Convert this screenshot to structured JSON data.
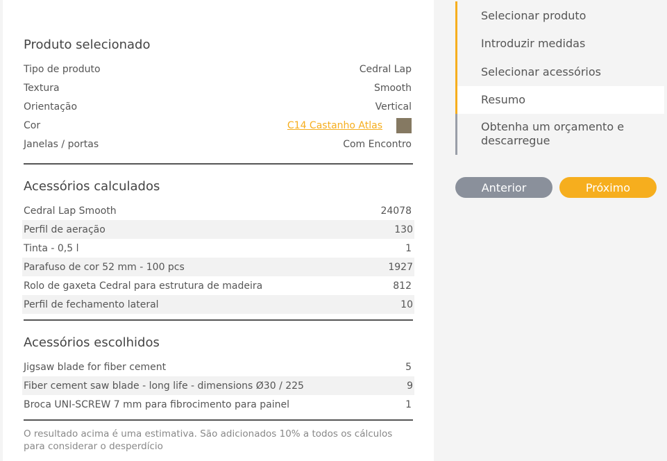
{
  "product": {
    "title": "Produto selecionado",
    "rows": [
      {
        "label": "Tipo de produto",
        "value": "Cedral Lap"
      },
      {
        "label": "Textura",
        "value": "Smooth"
      },
      {
        "label": "Orientação",
        "value": "Vertical"
      },
      {
        "label": "Cor",
        "value": "C14 Castanho Atlas",
        "swatch": "#857962"
      },
      {
        "label": "Janelas / portas",
        "value": "Com Encontro"
      }
    ]
  },
  "calculated": {
    "title": "Acessórios calculados",
    "rows": [
      {
        "label": "Cedral Lap Smooth",
        "value": "24078"
      },
      {
        "label": "Perfil de aeração",
        "value": "130"
      },
      {
        "label": "Tinta - 0,5 l",
        "value": "1"
      },
      {
        "label": "Parafuso de cor 52 mm - 100 pcs",
        "value": "1927"
      },
      {
        "label": "Rolo de gaxeta Cedral para estrutura de madeira",
        "value": "812"
      },
      {
        "label": "Perfil de fechamento lateral",
        "value": "10"
      }
    ]
  },
  "chosen": {
    "title": "Acessórios escolhidos",
    "rows": [
      {
        "label": "Jigsaw blade for fiber cement",
        "value": "5"
      },
      {
        "label": "Fiber cement saw blade - long life - dimensions Ø30 / 225",
        "value": "9"
      },
      {
        "label": "Broca UNI-SCREW 7 mm para fibrocimento para painel",
        "value": "1"
      }
    ]
  },
  "note": "O resultado acima é uma estimativa. São adicionados 10% a todos os cálculos para considerar o desperdício",
  "steps": [
    "Selecionar produto",
    "Introduzir medidas",
    "Selecionar acessórios",
    "Resumo",
    "Obtenha um orçamento e descarregue"
  ],
  "active_step": "Resumo",
  "buttons": {
    "prev": "Anterior",
    "next": "Próximo"
  },
  "colors": {
    "accent": "#f6ae1e",
    "inactive": "#8a909b"
  }
}
